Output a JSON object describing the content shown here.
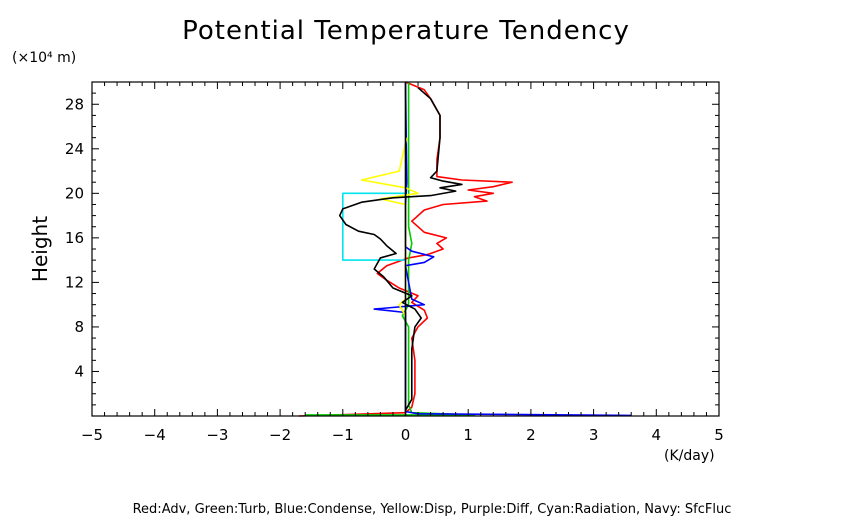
{
  "chart_data": {
    "type": "line",
    "title": "Potential Temperature Tendency",
    "xlabel": "(K/day)",
    "ylabel": "Height",
    "yunit": "(×10⁴ m)",
    "footer": "Red:Adv, Green:Turb, Blue:Condense, Yellow:Disp, Purple:Diff, Cyan:Radiation, Navy: SfcFluc",
    "xlim": [
      -5,
      5
    ],
    "ylim": [
      0,
      30
    ],
    "xticks": [
      -5,
      -4,
      -3,
      -2,
      -1,
      0,
      1,
      2,
      3,
      4,
      5
    ],
    "yticks": [
      4,
      8,
      12,
      16,
      20,
      24,
      28
    ],
    "grid": false,
    "series": [
      {
        "color": "#ff0000",
        "points": [
          [
            -1.7,
            0.0
          ],
          [
            0.0,
            0.3
          ],
          [
            0.1,
            0.8
          ],
          [
            0.15,
            2
          ],
          [
            0.15,
            5
          ],
          [
            0.1,
            7
          ],
          [
            0.2,
            8
          ],
          [
            0.35,
            8.8
          ],
          [
            0.3,
            9.5
          ],
          [
            0.1,
            10.2
          ],
          [
            0.2,
            10.8
          ],
          [
            -0.1,
            11.5
          ],
          [
            -0.3,
            12.2
          ],
          [
            -0.45,
            12.8
          ],
          [
            -0.3,
            13.5
          ],
          [
            0.05,
            14.2
          ],
          [
            0.35,
            14.5
          ],
          [
            0.6,
            15
          ],
          [
            0.5,
            15.5
          ],
          [
            0.65,
            16
          ],
          [
            0.3,
            16.5
          ],
          [
            0.1,
            17.5
          ],
          [
            0.3,
            18.5
          ],
          [
            0.6,
            19
          ],
          [
            1.3,
            19.3
          ],
          [
            1.1,
            19.7
          ],
          [
            1.4,
            20
          ],
          [
            1.0,
            20.3
          ],
          [
            1.4,
            20.6
          ],
          [
            1.7,
            21
          ],
          [
            0.9,
            21.2
          ],
          [
            0.5,
            21.5
          ],
          [
            0.5,
            23
          ],
          [
            0.55,
            25
          ],
          [
            0.55,
            27
          ],
          [
            0.4,
            28.5
          ],
          [
            0.3,
            29.3
          ],
          [
            0.0,
            30
          ]
        ]
      },
      {
        "color": "#00cc00",
        "points": [
          [
            -1.6,
            0.1
          ],
          [
            1.1,
            0.1
          ],
          [
            0.1,
            0.3
          ],
          [
            0.05,
            1
          ],
          [
            0.05,
            8
          ],
          [
            -0.05,
            9
          ],
          [
            0.05,
            10
          ],
          [
            0.05,
            14
          ],
          [
            0.1,
            15.5
          ],
          [
            0.05,
            17
          ],
          [
            0.05,
            30
          ]
        ]
      },
      {
        "color": "#0000ff",
        "points": [
          [
            3.6,
            0.05
          ],
          [
            0.2,
            0.2
          ],
          [
            0.0,
            0.4
          ],
          [
            0.0,
            9.3
          ],
          [
            -0.5,
            9.6
          ],
          [
            0.3,
            10
          ],
          [
            0.1,
            10.5
          ],
          [
            0.0,
            13.5
          ],
          [
            0.3,
            13.8
          ],
          [
            0.45,
            14.3
          ],
          [
            0.1,
            14.8
          ],
          [
            0.0,
            15.2
          ],
          [
            0.0,
            19
          ],
          [
            0.02,
            21
          ],
          [
            0.0,
            30
          ]
        ]
      },
      {
        "color": "#ffff00",
        "points": [
          [
            0.0,
            9
          ],
          [
            -0.1,
            10
          ],
          [
            0.0,
            10.5
          ],
          [
            0.0,
            19
          ],
          [
            -0.4,
            19.5
          ],
          [
            0.2,
            20
          ],
          [
            0.0,
            20.5
          ],
          [
            -0.7,
            21.2
          ],
          [
            -0.1,
            22
          ],
          [
            0.02,
            25
          ]
        ]
      },
      {
        "color": "#00e5ee",
        "points": [
          [
            0.0,
            14
          ],
          [
            -1.0,
            14
          ],
          [
            -1.0,
            20
          ],
          [
            0.0,
            20
          ]
        ]
      },
      {
        "color": "#000000",
        "points": [
          [
            0.0,
            0.5
          ],
          [
            0.1,
            1.5
          ],
          [
            0.1,
            6
          ],
          [
            0.15,
            8
          ],
          [
            0.25,
            8.8
          ],
          [
            0.15,
            9.6
          ],
          [
            -0.05,
            10.2
          ],
          [
            0.1,
            10.8
          ],
          [
            -0.2,
            11.5
          ],
          [
            -0.35,
            12.5
          ],
          [
            -0.5,
            13.2
          ],
          [
            -0.4,
            14.2
          ],
          [
            -0.15,
            14.6
          ],
          [
            -0.3,
            15.3
          ],
          [
            -0.4,
            15.9
          ],
          [
            -0.5,
            16.3
          ],
          [
            -0.75,
            16.6
          ],
          [
            -0.95,
            17.2
          ],
          [
            -1.05,
            18
          ],
          [
            -1.0,
            18.6
          ],
          [
            -0.7,
            19.2
          ],
          [
            -0.2,
            19.6
          ],
          [
            0.4,
            19.8
          ],
          [
            0.8,
            20.2
          ],
          [
            0.55,
            20.5
          ],
          [
            0.9,
            20.8
          ],
          [
            0.6,
            21.1
          ],
          [
            0.4,
            21.4
          ],
          [
            0.5,
            22
          ],
          [
            0.55,
            25
          ],
          [
            0.55,
            27
          ],
          [
            0.4,
            28.5
          ],
          [
            0.2,
            29.5
          ]
        ]
      },
      {
        "color": "#000000",
        "points": [
          [
            0.0,
            0.0
          ],
          [
            0.0,
            30
          ]
        ]
      }
    ]
  }
}
